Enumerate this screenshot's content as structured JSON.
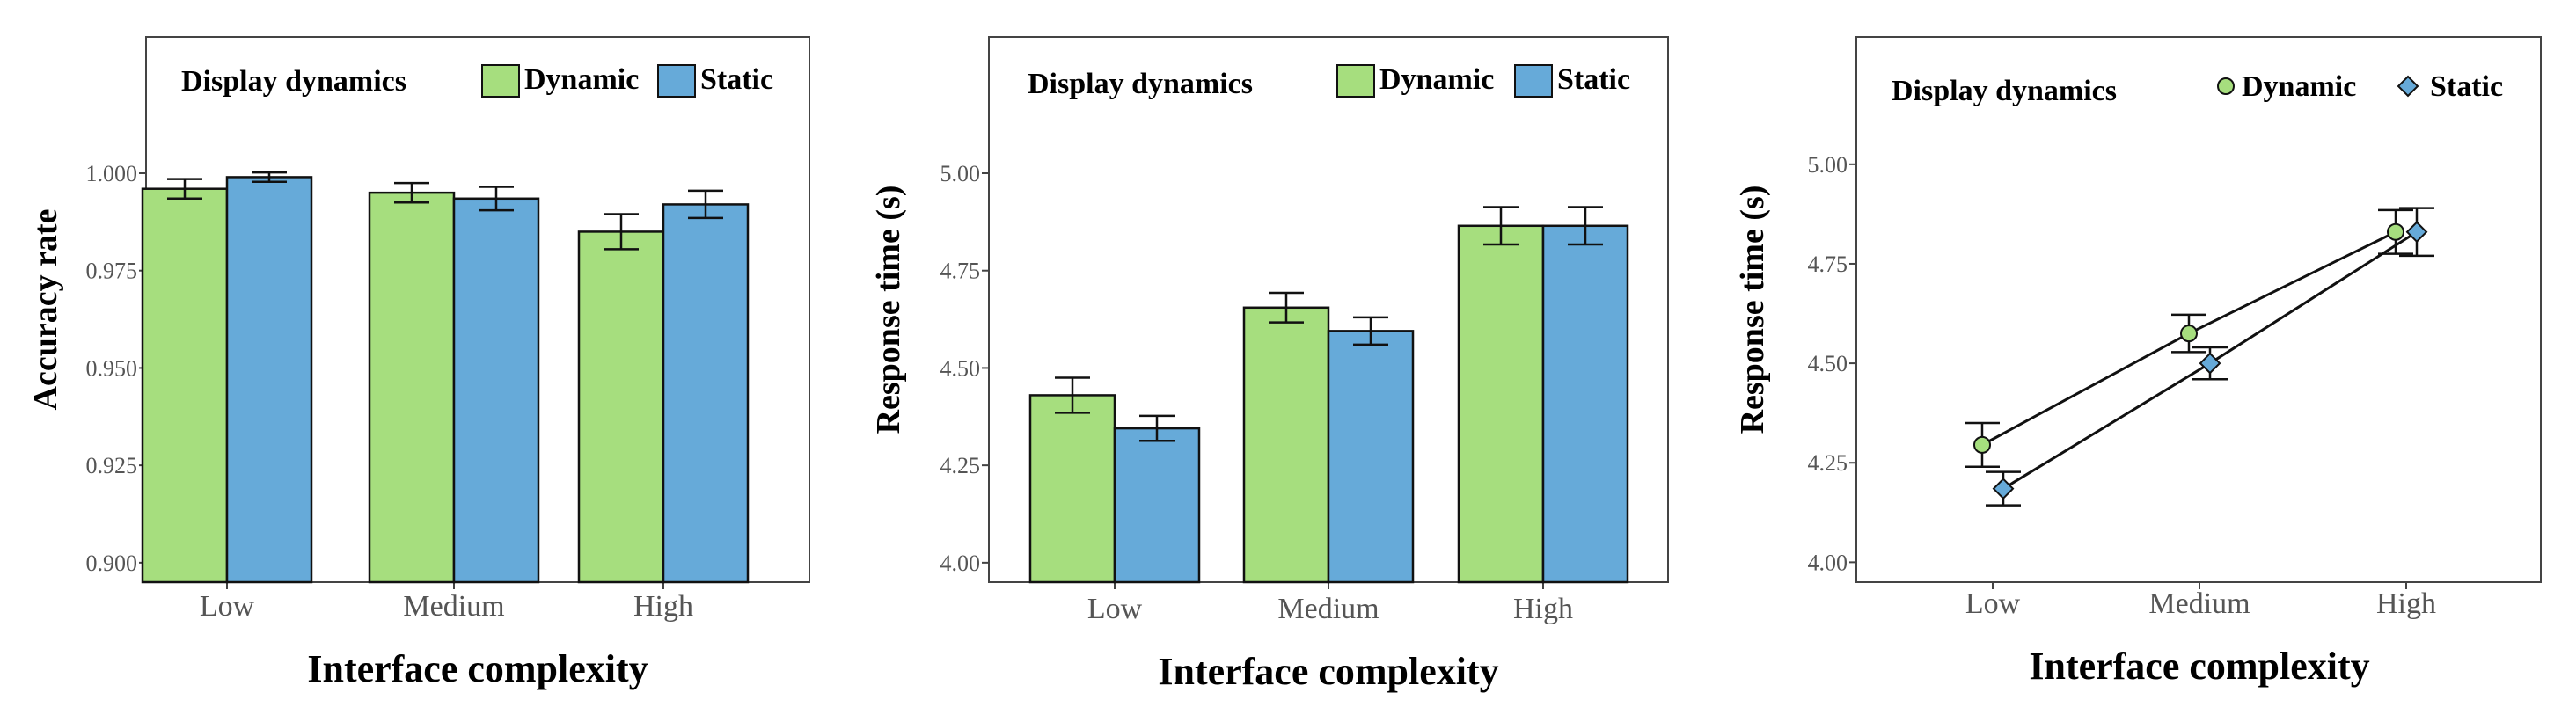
{
  "colors": {
    "dynamic": "#a6de7e",
    "static": "#66aad9",
    "stroke": "#111111"
  },
  "chart_data": [
    {
      "type": "bar",
      "categories": [
        "Low",
        "Medium",
        "High"
      ],
      "series": [
        {
          "name": "Dynamic",
          "values": [
            0.996,
            0.995,
            0.985
          ],
          "errors": [
            0.0025,
            0.0025,
            0.0045
          ]
        },
        {
          "name": "Static",
          "values": [
            0.999,
            0.9935,
            0.992
          ],
          "errors": [
            0.0012,
            0.003,
            0.0035
          ]
        }
      ],
      "xlabel": "Interface complexity",
      "ylabel": "Accuracy rate",
      "ylim": [
        0.895,
        1.035
      ],
      "yticks": [
        0.9,
        0.925,
        0.95,
        0.975,
        1.0
      ],
      "ytick_labels": [
        "0.900",
        "0.925",
        "0.950",
        "0.975",
        "1.000"
      ],
      "legend_title": "Display dynamics",
      "legend_position": "top",
      "grid": false
    },
    {
      "type": "bar",
      "categories": [
        "Low",
        "Medium",
        "High"
      ],
      "series": [
        {
          "name": "Dynamic",
          "values": [
            4.43,
            4.655,
            4.865
          ],
          "errors": [
            0.045,
            0.038,
            0.048
          ]
        },
        {
          "name": "Static",
          "values": [
            4.345,
            4.595,
            4.865
          ],
          "errors": [
            0.032,
            0.035,
            0.048
          ]
        }
      ],
      "xlabel": "Interface complexity",
      "ylabel": "Response time (s)",
      "ylim": [
        3.95,
        5.35
      ],
      "yticks": [
        4.0,
        4.25,
        4.5,
        4.75,
        5.0
      ],
      "ytick_labels": [
        "4.00",
        "4.25",
        "4.50",
        "4.75",
        "5.00"
      ],
      "legend_title": "Display dynamics",
      "legend_position": "top",
      "grid": false
    },
    {
      "type": "line",
      "categories": [
        "Low",
        "Medium",
        "High"
      ],
      "series": [
        {
          "name": "Dynamic",
          "marker": "circle",
          "values": [
            4.295,
            4.575,
            4.83
          ],
          "errors": [
            0.055,
            0.047,
            0.055
          ]
        },
        {
          "name": "Static",
          "marker": "diamond",
          "values": [
            4.185,
            4.5,
            4.83
          ],
          "errors": [
            0.042,
            0.04,
            0.06
          ]
        }
      ],
      "xlabel": "Interface complexity",
      "ylabel": "Response time (s)",
      "ylim": [
        3.95,
        5.32
      ],
      "yticks": [
        4.0,
        4.25,
        4.5,
        4.75,
        5.0
      ],
      "ytick_labels": [
        "4.00",
        "4.25",
        "4.50",
        "4.75",
        "5.00"
      ],
      "legend_title": "Display dynamics",
      "legend_position": "top",
      "grid": false
    }
  ]
}
